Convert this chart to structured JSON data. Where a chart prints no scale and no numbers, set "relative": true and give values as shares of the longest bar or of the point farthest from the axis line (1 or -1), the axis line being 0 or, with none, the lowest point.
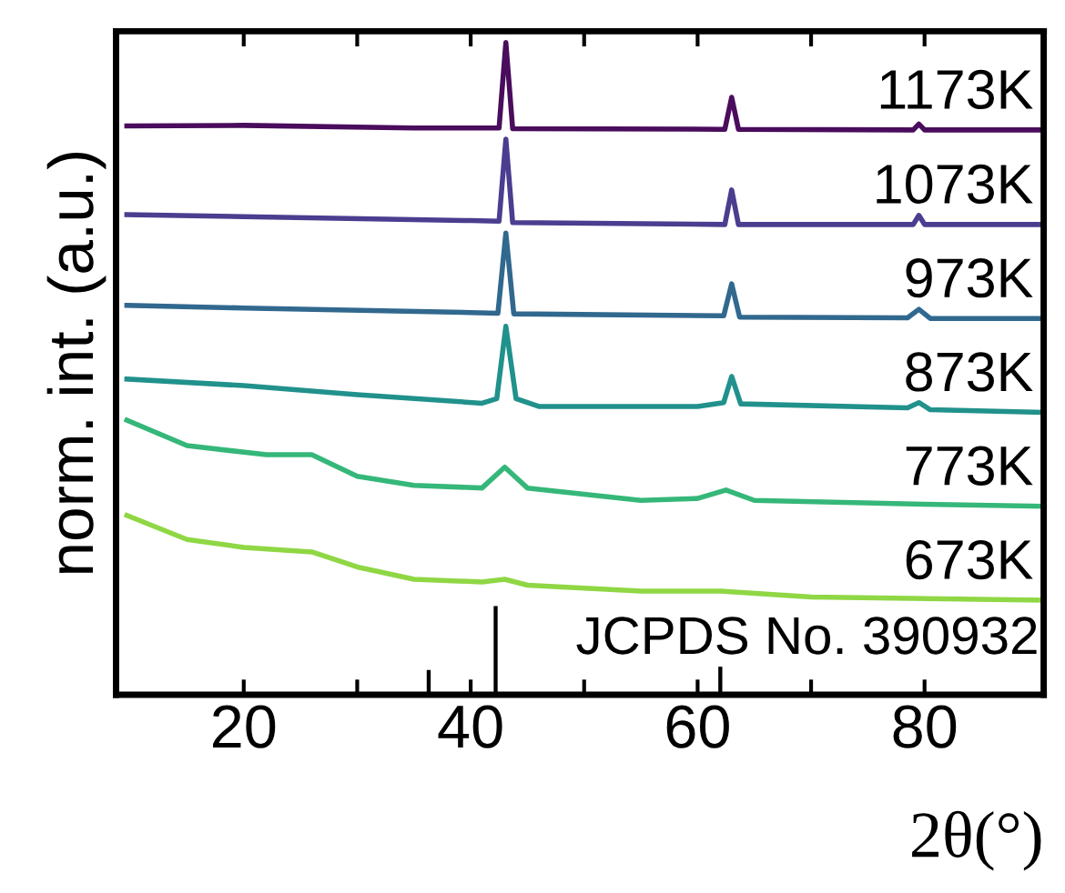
{
  "chart_data": {
    "type": "line",
    "relative": true,
    "xlabel": "2θ(°)",
    "ylabel": "norm. int. (a.u.)",
    "xlim": [
      8.75,
      90.5
    ],
    "xticks": [
      20,
      {
        "value": 30,
        "label": null
      },
      40,
      {
        "value": 50,
        "label": null
      },
      60,
      {
        "value": 70,
        "label": null
      },
      80
    ],
    "tick_labels": "x",
    "grid": false,
    "legend": false,
    "marker": "none",
    "line_style": "solid",
    "annotations": [
      "JCPDS No. 390932"
    ],
    "series": [
      {
        "name": "1173K",
        "color": "#4a0c5c",
        "x": [
          9.7,
          20,
          35,
          42.5,
          43.1,
          43.7,
          62.4,
          63.0,
          63.6,
          79,
          79.5,
          80,
          90.4
        ],
        "values": [
          0.872,
          0.873,
          0.869,
          0.869,
          1.0,
          0.868,
          0.867,
          0.916,
          0.867,
          0.866,
          0.875,
          0.866,
          0.866
        ]
      },
      {
        "name": "1073K",
        "color": "#4b3d8f",
        "x": [
          9.7,
          20,
          40,
          42.5,
          43.1,
          43.7,
          62.4,
          63.0,
          63.6,
          79,
          79.5,
          80,
          90.4
        ],
        "values": [
          0.736,
          0.733,
          0.727,
          0.726,
          0.852,
          0.724,
          0.721,
          0.774,
          0.721,
          0.721,
          0.735,
          0.721,
          0.721
        ]
      },
      {
        "name": "973K",
        "color": "#31688e",
        "x": [
          9.7,
          20,
          40,
          42.4,
          43.1,
          43.8,
          62.3,
          63.0,
          63.7,
          78.5,
          79.5,
          80.5,
          90.4
        ],
        "values": [
          0.597,
          0.593,
          0.586,
          0.585,
          0.708,
          0.584,
          0.581,
          0.63,
          0.579,
          0.578,
          0.591,
          0.577,
          0.577
        ]
      },
      {
        "name": "873K",
        "color": "#21918c",
        "x": [
          9.7,
          20,
          30,
          41,
          42.3,
          43.1,
          44,
          46,
          60,
          62.3,
          63.0,
          63.8,
          78.5,
          79.5,
          80.5,
          90.4
        ],
        "values": [
          0.484,
          0.474,
          0.46,
          0.447,
          0.454,
          0.565,
          0.454,
          0.442,
          0.442,
          0.448,
          0.488,
          0.446,
          0.44,
          0.448,
          0.437,
          0.433
        ]
      },
      {
        "name": "773K",
        "color": "#35b779",
        "x": [
          9.7,
          15,
          22,
          26,
          30,
          35,
          41,
          43,
          45,
          55,
          60,
          62.5,
          65,
          80,
          90.4
        ],
        "values": [
          0.421,
          0.382,
          0.368,
          0.368,
          0.335,
          0.321,
          0.317,
          0.349,
          0.317,
          0.298,
          0.301,
          0.314,
          0.298,
          0.292,
          0.289
        ]
      },
      {
        "name": "673K",
        "color": "#8fd744",
        "x": [
          9.7,
          15,
          20,
          26,
          30,
          35,
          41,
          43,
          45,
          55,
          62,
          70,
          90.4
        ],
        "values": [
          0.275,
          0.238,
          0.226,
          0.219,
          0.196,
          0.177,
          0.173,
          0.177,
          0.168,
          0.159,
          0.159,
          0.15,
          0.145
        ]
      },
      {
        "type": "bar",
        "color": "#000000",
        "x": [
          36.3,
          42.2,
          62.0
        ],
        "values": [
          0.038,
          0.136,
          0.043
        ]
      }
    ]
  }
}
